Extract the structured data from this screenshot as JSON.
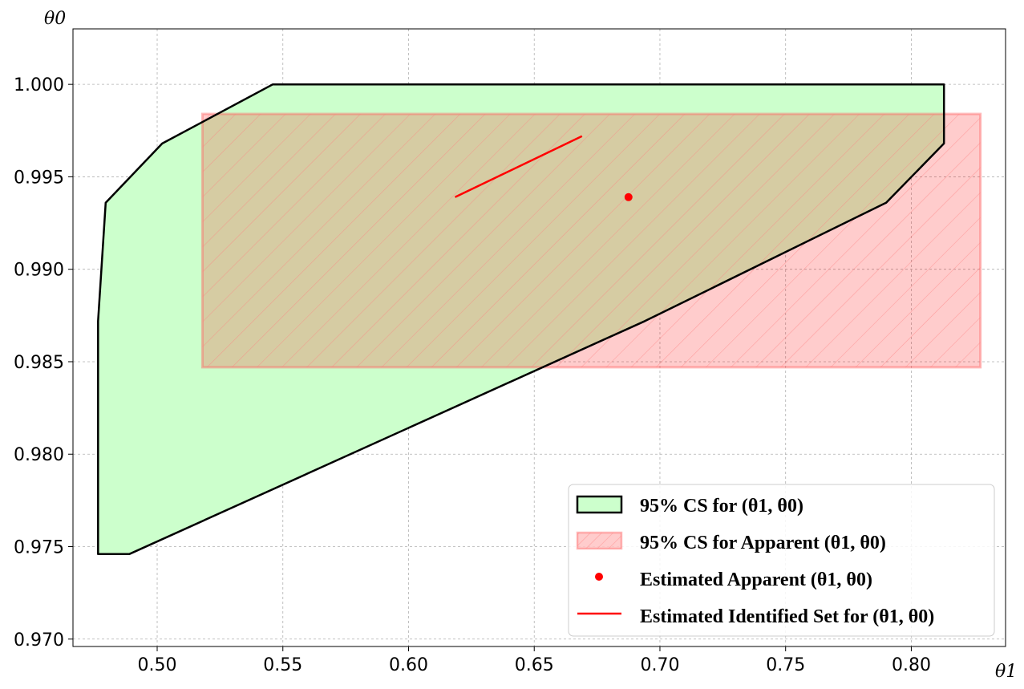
{
  "chart_data": {
    "type": "area",
    "title": "",
    "xlabel": "θ1",
    "ylabel": "θ0",
    "xlim": [
      0.4665,
      0.8375
    ],
    "ylim": [
      0.9696,
      1.003
    ],
    "grid": true,
    "xticks": [
      0.5,
      0.55,
      0.6,
      0.65,
      0.7,
      0.75,
      0.8
    ],
    "xtick_labels": [
      "0.50",
      "0.55",
      "0.60",
      "0.65",
      "0.70",
      "0.75",
      "0.80"
    ],
    "yticks": [
      0.97,
      0.975,
      0.98,
      0.985,
      0.99,
      0.995,
      1.0
    ],
    "ytick_labels": [
      "0.970",
      "0.975",
      "0.980",
      "0.985",
      "0.990",
      "0.995",
      "1.000"
    ],
    "legend_position": "bottom-right",
    "series": [
      {
        "name": "95% CS for (θ1, θ0)",
        "kind": "polygon",
        "fill_color": "#ccffcc",
        "edge_color": "#000000",
        "points": [
          [
            0.4765,
            0.9746
          ],
          [
            0.489,
            0.9746
          ],
          [
            0.694,
            0.9872
          ],
          [
            0.79,
            0.9936
          ],
          [
            0.813,
            0.9968
          ],
          [
            0.813,
            1.0
          ],
          [
            0.546,
            1.0
          ],
          [
            0.502,
            0.9968
          ],
          [
            0.4795,
            0.9936
          ],
          [
            0.4765,
            0.9872
          ]
        ]
      },
      {
        "name": "95% CS for Apparent (θ1, θ0)",
        "kind": "rectangle",
        "fill_color": "#ffb3b3",
        "edge_color": "#ff9999",
        "hatch": true,
        "x_range": [
          0.518,
          0.8275
        ],
        "y_range": [
          0.9847,
          0.9984
        ]
      },
      {
        "name": "Estimated Apparent (θ1, θ0)",
        "kind": "point",
        "color": "#ff0000",
        "x": 0.6875,
        "y": 0.9939
      },
      {
        "name": "Estimated Identified Set for (θ1, θ0)",
        "kind": "line",
        "color": "#ff0000",
        "points": [
          [
            0.6185,
            0.9939
          ],
          [
            0.669,
            0.9972
          ]
        ]
      }
    ]
  }
}
